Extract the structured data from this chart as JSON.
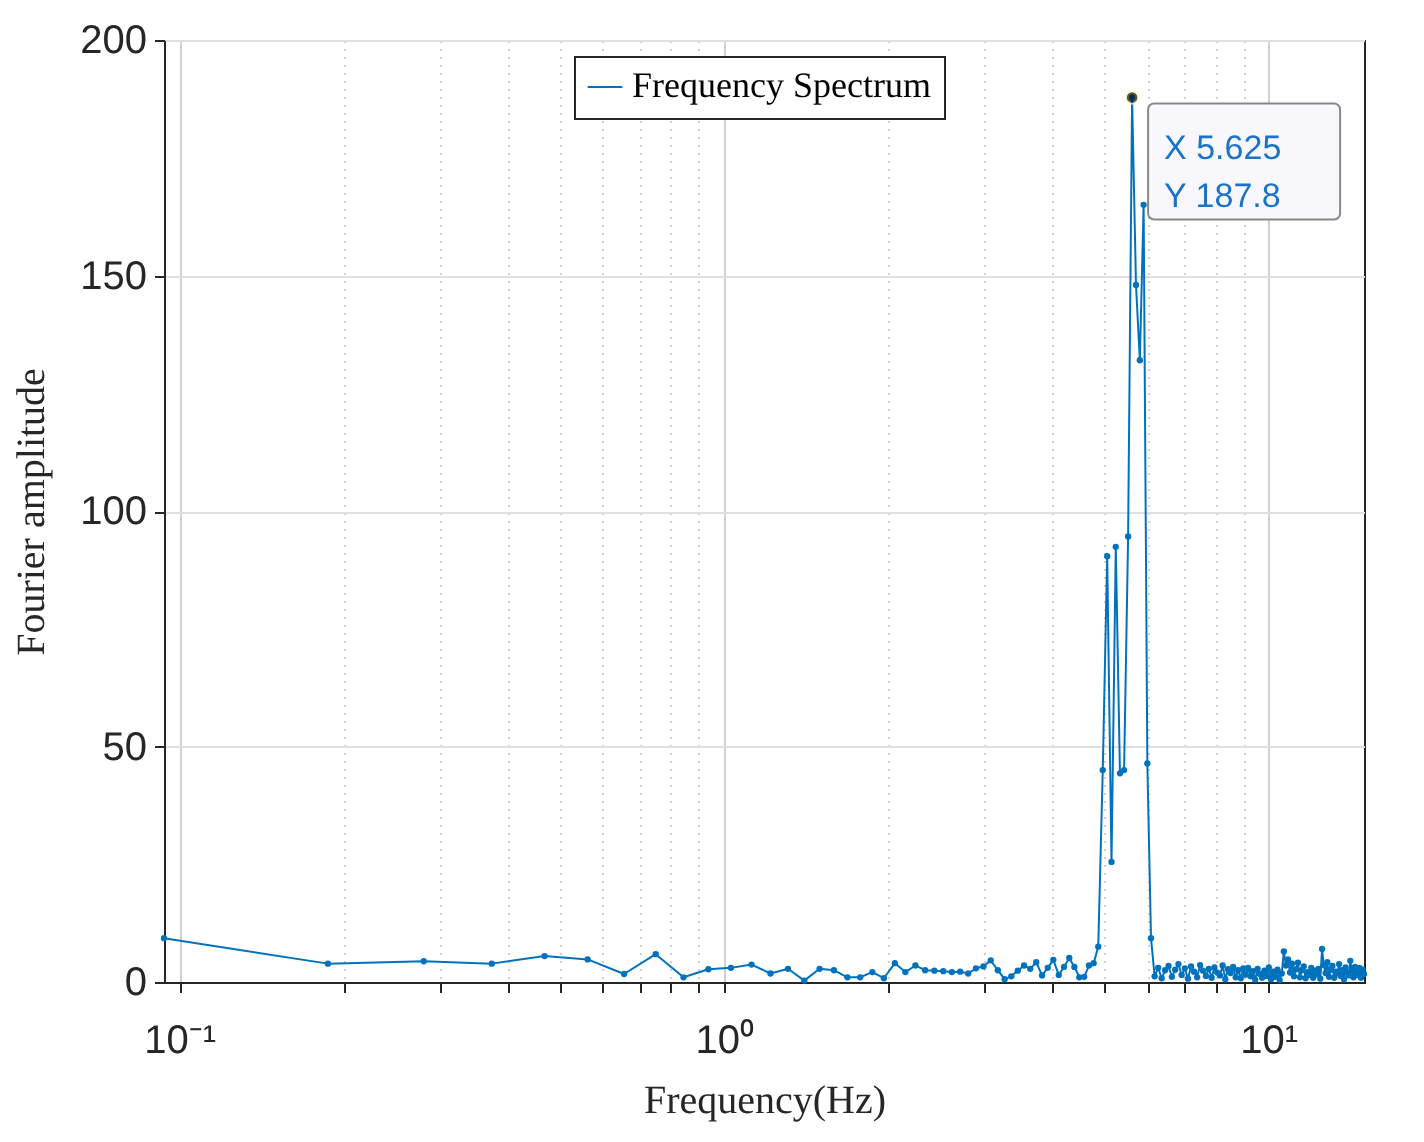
{
  "chart_data": {
    "type": "line",
    "xlabel": "Frequency(Hz)",
    "ylabel": "Fourier amplitude",
    "log": "x",
    "grid": true,
    "legend": "top",
    "marker": "circle",
    "line_style": "solid",
    "xlim": [
      0.09375,
      15
    ],
    "ylim": [
      0,
      200
    ],
    "xticks": [
      {
        "value": 0.1,
        "label": "10⁻¹"
      },
      {
        "value": 0.2,
        "label": null
      },
      {
        "value": 0.3,
        "label": null
      },
      {
        "value": 0.4,
        "label": null
      },
      {
        "value": 0.5,
        "label": null
      },
      {
        "value": 0.6,
        "label": null
      },
      {
        "value": 0.7,
        "label": null
      },
      {
        "value": 0.8,
        "label": null
      },
      {
        "value": 0.9,
        "label": null
      },
      {
        "value": 1,
        "label": "10⁰"
      },
      {
        "value": 2,
        "label": null
      },
      {
        "value": 3,
        "label": null
      },
      {
        "value": 4,
        "label": null
      },
      {
        "value": 5,
        "label": null
      },
      {
        "value": 6,
        "label": null
      },
      {
        "value": 7,
        "label": null
      },
      {
        "value": 8,
        "label": null
      },
      {
        "value": 9,
        "label": null
      },
      {
        "value": 10,
        "label": "10¹"
      }
    ],
    "yticks": [
      0,
      50,
      100,
      150,
      200
    ],
    "annotations": [
      {
        "text": "X 5.625\nY 187.8",
        "x": 5.625,
        "y": 187.8
      }
    ],
    "x": [
      0.09375,
      0.1875,
      0.28125,
      0.375,
      0.46875,
      0.5625,
      0.65625,
      0.75,
      0.84375,
      0.9375,
      1.03125,
      1.125,
      1.21875,
      1.3125,
      1.40625,
      1.5,
      1.59375,
      1.6875,
      1.78125,
      1.875,
      1.96875,
      2.0625,
      2.15625,
      2.25,
      2.34375,
      2.4375,
      2.53125,
      2.625,
      2.71875,
      2.8125,
      2.90625,
      3,
      3.09375,
      3.1875,
      3.28125,
      3.375,
      3.46875,
      3.5625,
      3.65625,
      3.75,
      3.84375,
      3.9375,
      4.03125,
      4.125,
      4.21875,
      4.3125,
      4.40625,
      4.5,
      4.59375,
      4.6875,
      4.78125,
      4.875,
      4.96875,
      5.0625,
      5.15625,
      5.25,
      5.34375,
      5.4375,
      5.53125,
      5.625,
      5.71875,
      5.8125,
      5.90625,
      6,
      6.09375,
      6.1875,
      6.28125,
      6.375,
      6.46875,
      6.5625,
      6.65625,
      6.75,
      6.84375,
      6.9375,
      7.03125,
      7.125,
      7.21875,
      7.3125,
      7.40625,
      7.5,
      7.59375,
      7.6875,
      7.78125,
      7.875,
      7.96875,
      8.0625,
      8.15625,
      8.25,
      8.34375,
      8.4375,
      8.53125,
      8.625,
      8.71875,
      8.8125,
      8.90625,
      9,
      9.09375,
      9.1875,
      9.28125,
      9.375,
      9.46875,
      9.5625,
      9.65625,
      9.75,
      9.84375,
      9.9375,
      10.03125,
      10.125,
      10.21875,
      10.3125,
      10.40625,
      10.5,
      10.59375,
      10.6875,
      10.78125,
      10.875,
      10.96875,
      11.0625,
      11.15625,
      11.25,
      11.34375,
      11.4375,
      11.53125,
      11.625,
      11.71875,
      11.8125,
      11.90625,
      12,
      12.09375,
      12.1875,
      12.28125,
      12.375,
      12.46875,
      12.5625,
      12.65625,
      12.75,
      12.84375,
      12.9375,
      13.03125,
      13.125,
      13.21875,
      13.3125,
      13.40625,
      13.5,
      13.59375,
      13.6875,
      13.78125,
      13.875,
      13.96875,
      14.0625,
      14.15625,
      14.25,
      14.34375,
      14.4375,
      14.53125,
      14.625,
      14.71875,
      14.8125,
      14.90625,
      15
    ],
    "series": [
      {
        "name": "Frequency Spectrum",
        "color": "#0072bd",
        "values": [
          9.3,
          3.9,
          4.4,
          3.9,
          5.5,
          4.8,
          1.7,
          5.9,
          1.0,
          2.7,
          3.0,
          3.7,
          1.8,
          2.8,
          0.3,
          2.8,
          2.5,
          1.0,
          1.0,
          2.1,
          0.8,
          4.0,
          2.1,
          3.5,
          2.5,
          2.4,
          2.3,
          2.1,
          2.2,
          1.8,
          2.9,
          3.3,
          4.6,
          2.5,
          0.6,
          1.2,
          2.4,
          3.5,
          2.8,
          4.2,
          1.4,
          3.0,
          4.7,
          1.5,
          3.2,
          5.1,
          3.2,
          1.0,
          1.1,
          3.5,
          4.0,
          7.5,
          45,
          90.4,
          25.5,
          92.4,
          44.3,
          45,
          94.6,
          187.8,
          148,
          132,
          165,
          46.4,
          9.3,
          1.2,
          3.0,
          0.8,
          2.5,
          3.4,
          1.1,
          2.6,
          3.8,
          1.5,
          2.9,
          0.7,
          3.3,
          2.2,
          1.0,
          3.6,
          2.4,
          1.3,
          2.8,
          0.9,
          3.1,
          2.0,
          1.4,
          3.5,
          0.6,
          2.7,
          1.9,
          3.2,
          1.0,
          2.5,
          0.8,
          2.9,
          1.6,
          3.0,
          1.2,
          2.3,
          0.5,
          2.8,
          1.7,
          0.9,
          2.4,
          1.3,
          3.1,
          0.6,
          2.2,
          1.1,
          2.6,
          0.4,
          1.8,
          6.5,
          3.5,
          4.8,
          2.0,
          3.9,
          1.2,
          2.7,
          4.1,
          1.0,
          2.5,
          3.3,
          0.8,
          2.1,
          1.5,
          3.0,
          0.9,
          2.4,
          1.6,
          2.8,
          0.7,
          7.0,
          3.6,
          1.9,
          4.2,
          1.1,
          2.6,
          3.4,
          0.9,
          2.2,
          1.8,
          3.8,
          1.3,
          2.5,
          0.6,
          3.1,
          2.0,
          1.4,
          4.5,
          2.3,
          1.0,
          3.2,
          2.1,
          1.5,
          3.0,
          0.9,
          2.6,
          1.7
        ]
      }
    ]
  }
}
